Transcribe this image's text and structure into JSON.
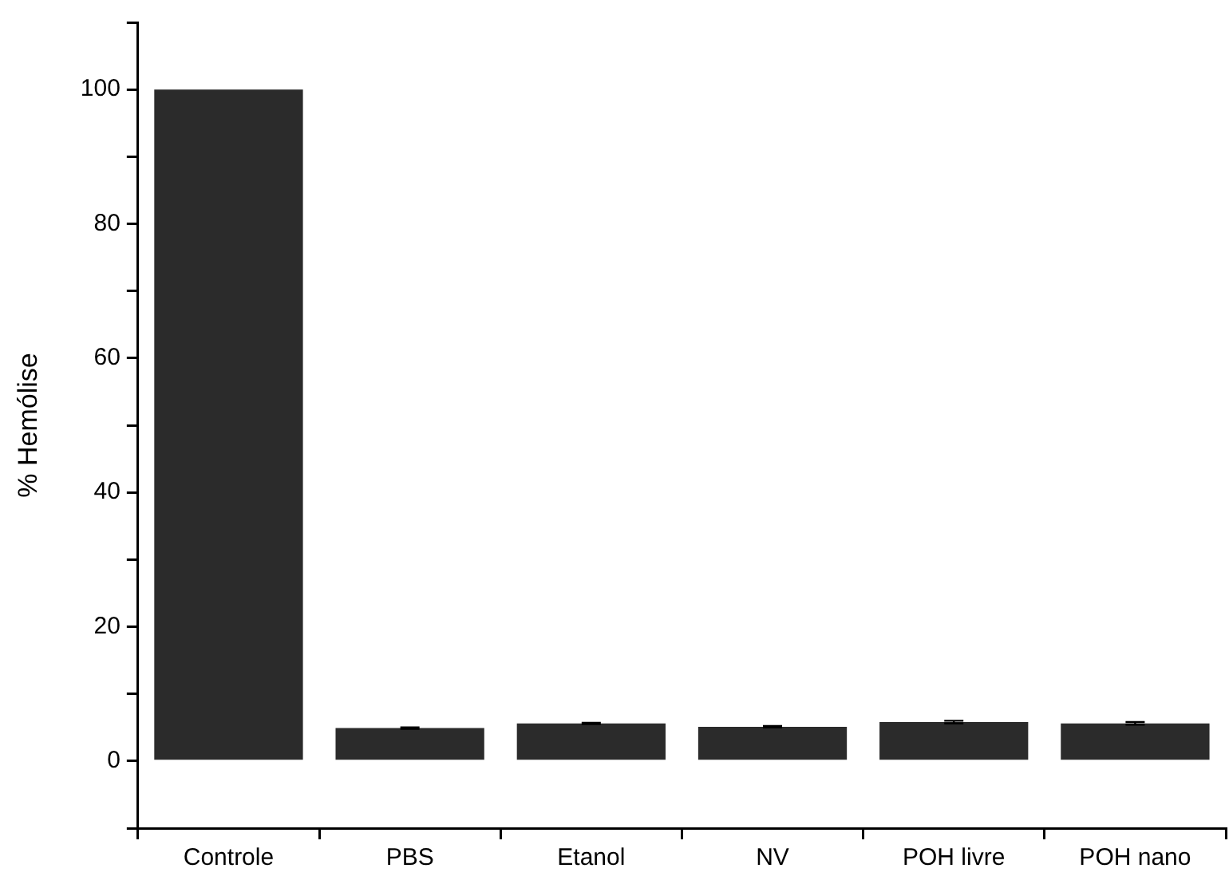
{
  "chart_data": {
    "type": "bar",
    "ylabel": "% Hemólise",
    "categories": [
      "Controle",
      "PBS",
      "Etanol",
      "NV",
      "POH livre",
      "POH nano"
    ],
    "values": [
      100,
      4.9,
      5.6,
      5.1,
      5.8,
      5.6
    ],
    "errors": [
      null,
      0.1,
      0.1,
      0.1,
      0.2,
      0.2
    ],
    "color": "#2b2b2b",
    "ylim": [
      -10,
      110
    ],
    "yticks": [
      {
        "value": -10,
        "label": null
      },
      0,
      {
        "value": 10,
        "label": null
      },
      20,
      {
        "value": 30,
        "label": null
      },
      40,
      {
        "value": 50,
        "label": null
      },
      60,
      {
        "value": 70,
        "label": null
      },
      80,
      {
        "value": 90,
        "label": null
      },
      100,
      {
        "value": 110,
        "label": null
      }
    ],
    "grid": false,
    "legend": false
  }
}
